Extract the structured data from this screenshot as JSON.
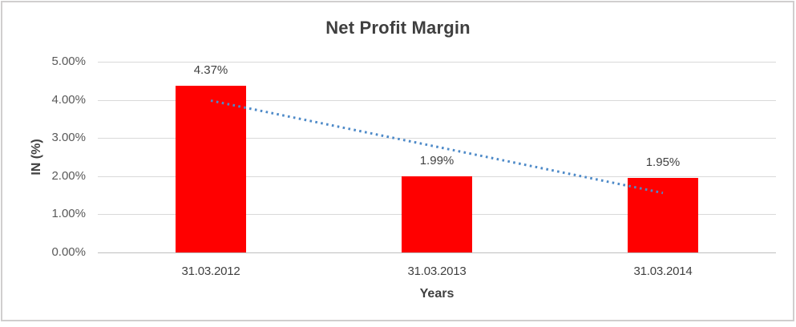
{
  "window": {
    "background": "#ffffff",
    "border_color": "#d0cece"
  },
  "chart_data": {
    "type": "bar",
    "title": "Net Profit Margin",
    "xlabel": "Years",
    "ylabel": "IN (%)",
    "categories": [
      "31.03.2012",
      "31.03.2013",
      "31.03.2014"
    ],
    "values": [
      4.37,
      1.99,
      1.95
    ],
    "value_labels": [
      "4.37%",
      "1.99%",
      "1.95%"
    ],
    "yticks": [
      {
        "value": 5,
        "label": "5.00%"
      },
      {
        "value": 4,
        "label": "4.00%"
      },
      {
        "value": 3,
        "label": "3.00%"
      },
      {
        "value": 2,
        "label": "2.00%"
      },
      {
        "value": 1,
        "label": "1.00%"
      },
      {
        "value": 0,
        "label": "0.00%"
      }
    ],
    "ylim": [
      0,
      5
    ],
    "grid": true,
    "legend": "none",
    "bar_color": "#ff0000",
    "trendline": {
      "style": "dotted",
      "color": "#4e8ac8",
      "start_value": 3.98,
      "end_value": 1.56
    }
  }
}
